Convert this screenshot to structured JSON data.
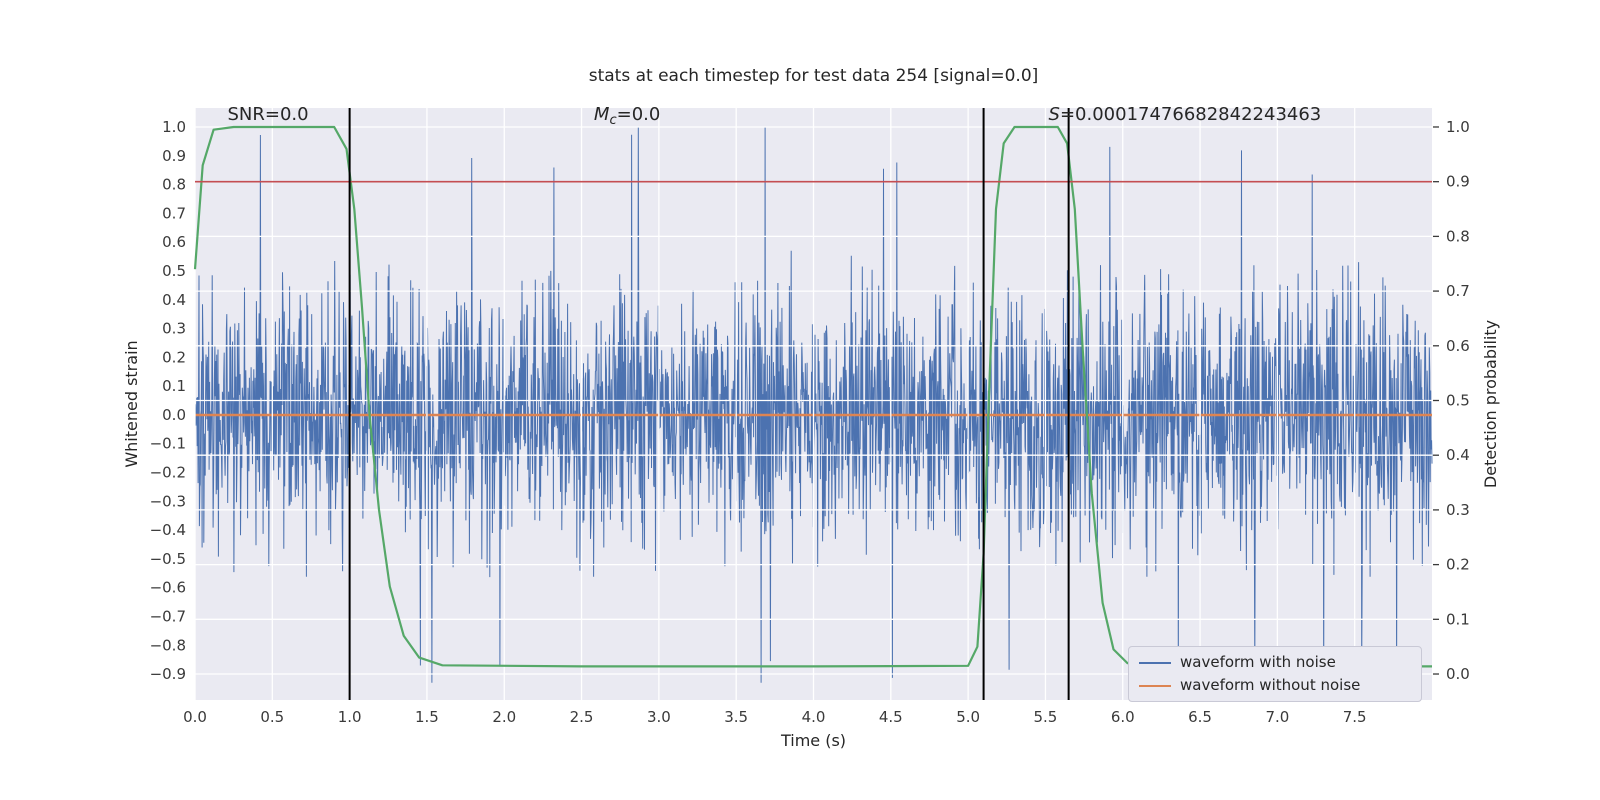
{
  "chart_data": {
    "type": "line",
    "title": "stats at each timestep for test data 254 [signal=0.0]",
    "xlabel": "Time (s)",
    "ylabel_left": "Whitened strain",
    "ylabel_right": "Detection probability",
    "xlim": [
      0.0,
      8.0
    ],
    "ylim_left": [
      -0.99,
      1.066
    ],
    "ylim_right": [
      -0.0475,
      1.0347
    ],
    "x_ticks": [
      0.0,
      0.5,
      1.0,
      1.5,
      2.0,
      2.5,
      3.0,
      3.5,
      4.0,
      4.5,
      5.0,
      5.5,
      6.0,
      6.5,
      7.0,
      7.5
    ],
    "y_ticks_left": [
      1.0,
      0.9,
      0.8,
      0.7,
      0.6,
      0.5,
      0.4,
      0.3,
      0.2,
      0.1,
      0.0,
      -0.1,
      -0.2,
      -0.3,
      -0.4,
      -0.5,
      -0.6,
      -0.7,
      -0.8,
      -0.9
    ],
    "y_ticks_right": [
      1.0,
      0.9,
      0.8,
      0.7,
      0.6,
      0.5,
      0.4,
      0.3,
      0.2,
      0.1,
      0.0
    ],
    "grid": {
      "show": true,
      "color": "#ffffff",
      "horizontal_on": "right-axis ticks",
      "vertical_on": "x ticks"
    },
    "plot_bg": "#eaeaf2",
    "series": [
      {
        "name": "waveform with noise",
        "color": "#4C72B0",
        "axis": "left",
        "kind": "noise",
        "in_legend": true,
        "generator": {
          "seed": 254,
          "n": 2800,
          "sigma": 0.22,
          "tail_sigma": 2.6,
          "tail_factor": 1.45,
          "clip": [
            -0.93,
            1.0
          ]
        }
      },
      {
        "name": "waveform without noise",
        "color": "#DD8452",
        "axis": "left",
        "kind": "constant",
        "value": 0.0,
        "in_legend": true
      },
      {
        "name": "detection probability",
        "color": "#55A868",
        "axis": "right",
        "kind": "points",
        "in_legend": false,
        "points": [
          [
            0,
            0.74
          ],
          [
            0.05,
            0.93
          ],
          [
            0.12,
            0.995
          ],
          [
            0.25,
            1.0
          ],
          [
            0.9,
            1.0
          ],
          [
            0.98,
            0.96
          ],
          [
            1.03,
            0.85
          ],
          [
            1.08,
            0.67
          ],
          [
            1.13,
            0.47
          ],
          [
            1.19,
            0.3
          ],
          [
            1.26,
            0.16
          ],
          [
            1.35,
            0.07
          ],
          [
            1.45,
            0.03
          ],
          [
            1.6,
            0.016
          ],
          [
            2.5,
            0.014
          ],
          [
            4.0,
            0.014
          ],
          [
            5.0,
            0.015
          ],
          [
            5.06,
            0.05
          ],
          [
            5.1,
            0.22
          ],
          [
            5.14,
            0.55
          ],
          [
            5.18,
            0.85
          ],
          [
            5.23,
            0.97
          ],
          [
            5.3,
            1.0
          ],
          [
            5.58,
            1.0
          ],
          [
            5.64,
            0.97
          ],
          [
            5.69,
            0.85
          ],
          [
            5.74,
            0.6
          ],
          [
            5.8,
            0.33
          ],
          [
            5.87,
            0.13
          ],
          [
            5.94,
            0.045
          ],
          [
            6.03,
            0.02
          ],
          [
            6.3,
            0.014
          ],
          [
            8.0,
            0.014
          ]
        ]
      },
      {
        "name": "decision threshold",
        "color": "#C44E52",
        "axis": "right",
        "kind": "hline",
        "value": 0.9,
        "in_legend": false
      }
    ],
    "vlines": {
      "color": "#000000",
      "x": [
        1.0,
        5.1,
        5.65
      ]
    },
    "legend_position": "lower right",
    "annotations": [
      {
        "id": "snr",
        "x": 0.21,
        "parts": [
          {
            "text": "SNR=0.0",
            "style": "normal"
          }
        ]
      },
      {
        "id": "chirp-mass",
        "x": 2.58,
        "parts": [
          {
            "text": "M",
            "style": "italic"
          },
          {
            "text": "c",
            "style": "italic-sub"
          },
          {
            "text": "=0.0",
            "style": "normal"
          }
        ]
      },
      {
        "id": "s-value",
        "x": 5.52,
        "parts": [
          {
            "text": "S",
            "style": "italic"
          },
          {
            "text": "=0.00017476682842243463",
            "style": "normal"
          }
        ]
      }
    ]
  },
  "colors": {
    "text": "#262626",
    "tick_text": "#3a3a3a",
    "plot_bg": "#eaeaf2",
    "grid": "#ffffff",
    "legend_bg": "#eaeaf2",
    "legend_border": "#c9c9d6"
  }
}
